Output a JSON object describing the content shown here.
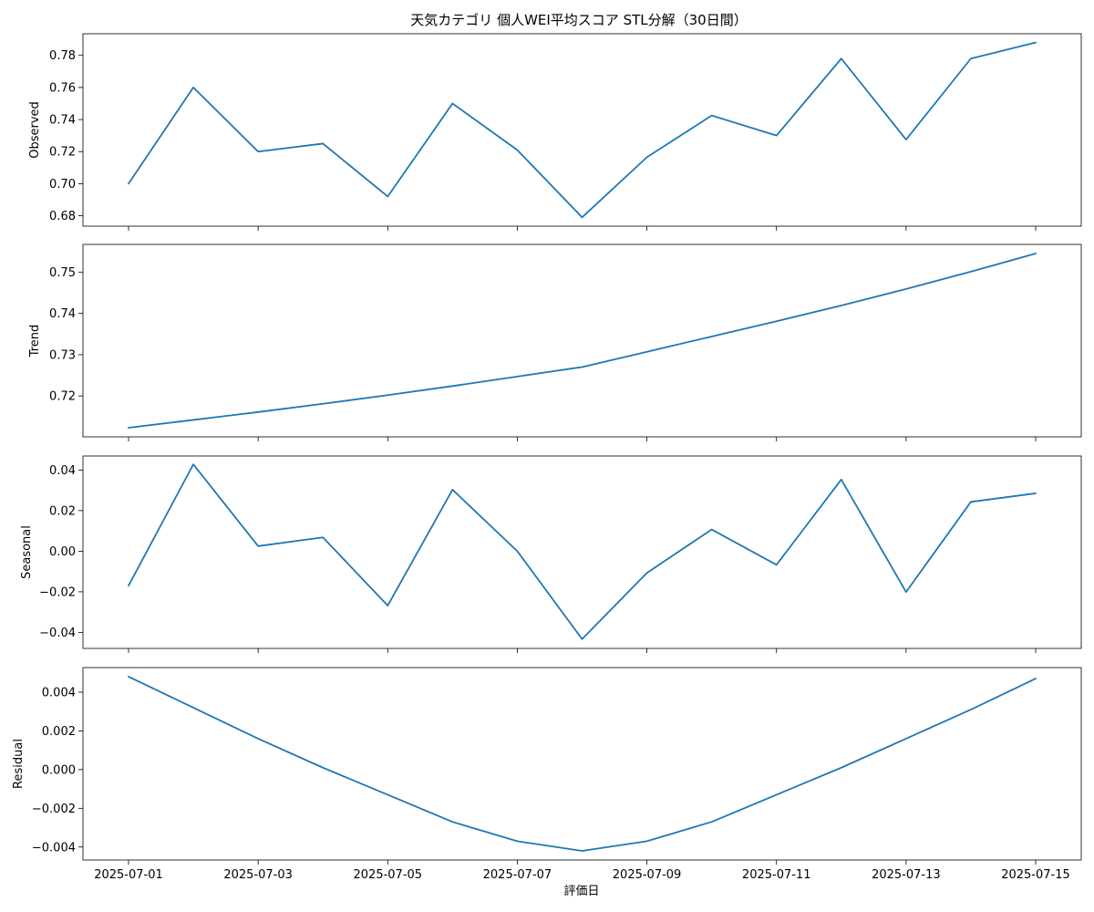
{
  "chart_data": {
    "type": "line",
    "title": "天気カテゴリ 個人WEI平均スコア STL分解（30日間）",
    "xlabel": "評価日",
    "line_color": "#1f77b4",
    "x": [
      "2025-07-01",
      "2025-07-02",
      "2025-07-03",
      "2025-07-04",
      "2025-07-05",
      "2025-07-06",
      "2025-07-07",
      "2025-07-08",
      "2025-07-09",
      "2025-07-10",
      "2025-07-11",
      "2025-07-12",
      "2025-07-13",
      "2025-07-14",
      "2025-07-15"
    ],
    "x_ticks": [
      "2025-07-01",
      "2025-07-03",
      "2025-07-05",
      "2025-07-07",
      "2025-07-09",
      "2025-07-11",
      "2025-07-13",
      "2025-07-15"
    ],
    "panels": [
      {
        "ylabel": "Observed",
        "ylim": [
          0.6735,
          0.7935
        ],
        "y_ticks": [
          0.68,
          0.7,
          0.72,
          0.74,
          0.76,
          0.78
        ],
        "y_tick_labels": [
          "0.68",
          "0.70",
          "0.72",
          "0.74",
          "0.76",
          "0.78"
        ],
        "values": [
          0.7,
          0.76,
          0.72,
          0.725,
          0.692,
          0.75,
          0.721,
          0.679,
          0.7165,
          0.7425,
          0.73,
          0.778,
          0.7275,
          0.778,
          0.788
        ]
      },
      {
        "ylabel": "Trend",
        "ylim": [
          0.7101,
          0.7567
        ],
        "y_ticks": [
          0.72,
          0.73,
          0.74,
          0.75
        ],
        "y_tick_labels": [
          "0.72",
          "0.73",
          "0.74",
          "0.75"
        ],
        "values": [
          0.7123,
          0.7142,
          0.7161,
          0.7181,
          0.7202,
          0.7224,
          0.7247,
          0.727,
          0.7307,
          0.7344,
          0.7381,
          0.7419,
          0.7459,
          0.7501,
          0.7545
        ]
      },
      {
        "ylabel": "Seasonal",
        "ylim": [
          -0.0479,
          0.0469
        ],
        "y_ticks": [
          -0.04,
          -0.02,
          0.0,
          0.02,
          0.04
        ],
        "y_tick_labels": [
          "−0.04",
          "−0.02",
          "0.00",
          "0.02",
          "0.04"
        ],
        "values": [
          -0.017,
          0.0428,
          0.0025,
          0.0068,
          -0.0268,
          0.0303,
          0.0,
          -0.0433,
          -0.0107,
          0.0107,
          -0.0067,
          0.0353,
          -0.0201,
          0.0243,
          0.0285
        ]
      },
      {
        "ylabel": "Residual",
        "ylim": [
          -0.00467,
          0.00527
        ],
        "y_ticks": [
          -0.004,
          -0.002,
          0.0,
          0.002,
          0.004
        ],
        "y_tick_labels": [
          "−0.004",
          "−0.002",
          "0.000",
          "0.002",
          "0.004"
        ],
        "values": [
          0.0048,
          0.0032,
          0.0016,
          0.0001,
          -0.0013,
          -0.0027,
          -0.0037,
          -0.0042,
          -0.0037,
          -0.0027,
          -0.0013,
          0.0001,
          0.0016,
          0.0031,
          0.0047
        ]
      }
    ]
  }
}
